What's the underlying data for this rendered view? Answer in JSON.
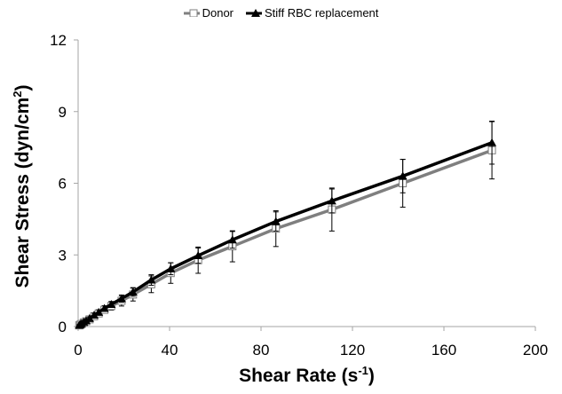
{
  "chart_data": {
    "type": "line",
    "xlabel": "Shear Rate (s",
    "xlabel_sup": "-1",
    "xlabel_close": ")",
    "ylabel": "Shear Stress (dyn/cm",
    "ylabel_sup": "2",
    "ylabel_close": ")",
    "xlim": [
      0,
      200
    ],
    "ylim": [
      0,
      12
    ],
    "xticks": [
      0,
      40,
      80,
      120,
      160,
      200
    ],
    "yticks": [
      0,
      3,
      6,
      9,
      12
    ],
    "grid": false,
    "legend_position": "top-center",
    "series": [
      {
        "name": "Donor",
        "color": "#7f7f7f",
        "marker": "open-square",
        "x": [
          0.5,
          1.0,
          1.5,
          2.5,
          3.5,
          5.0,
          7.0,
          9.0,
          11.5,
          14.5,
          19.0,
          24.0,
          32.0,
          40.5,
          52.5,
          67.5,
          86.5,
          111.0,
          142.0,
          181.0
        ],
        "y": [
          0.05,
          0.08,
          0.11,
          0.17,
          0.22,
          0.3,
          0.43,
          0.55,
          0.7,
          0.86,
          1.08,
          1.34,
          1.77,
          2.24,
          2.78,
          3.36,
          4.1,
          4.9,
          6.0,
          7.38
        ],
        "error": [
          0.02,
          0.03,
          0.04,
          0.05,
          0.06,
          0.08,
          0.1,
          0.12,
          0.14,
          0.17,
          0.22,
          0.27,
          0.35,
          0.43,
          0.55,
          0.65,
          0.75,
          0.9,
          1.0,
          1.2
        ]
      },
      {
        "name": "Stiff RBC replacement",
        "color": "#000000",
        "marker": "filled-triangle",
        "x": [
          0.5,
          1.0,
          1.5,
          2.5,
          3.5,
          5.0,
          7.0,
          9.0,
          11.5,
          14.5,
          19.0,
          24.0,
          32.0,
          40.5,
          52.5,
          67.5,
          86.5,
          111.0,
          142.0,
          181.0
        ],
        "y": [
          0.06,
          0.09,
          0.13,
          0.19,
          0.25,
          0.34,
          0.48,
          0.6,
          0.76,
          0.93,
          1.17,
          1.45,
          1.95,
          2.42,
          2.97,
          3.63,
          4.4,
          5.26,
          6.3,
          7.7
        ],
        "error": [
          0.02,
          0.03,
          0.03,
          0.04,
          0.05,
          0.06,
          0.08,
          0.1,
          0.11,
          0.12,
          0.15,
          0.18,
          0.22,
          0.25,
          0.32,
          0.35,
          0.4,
          0.5,
          0.7,
          0.9
        ]
      }
    ]
  }
}
